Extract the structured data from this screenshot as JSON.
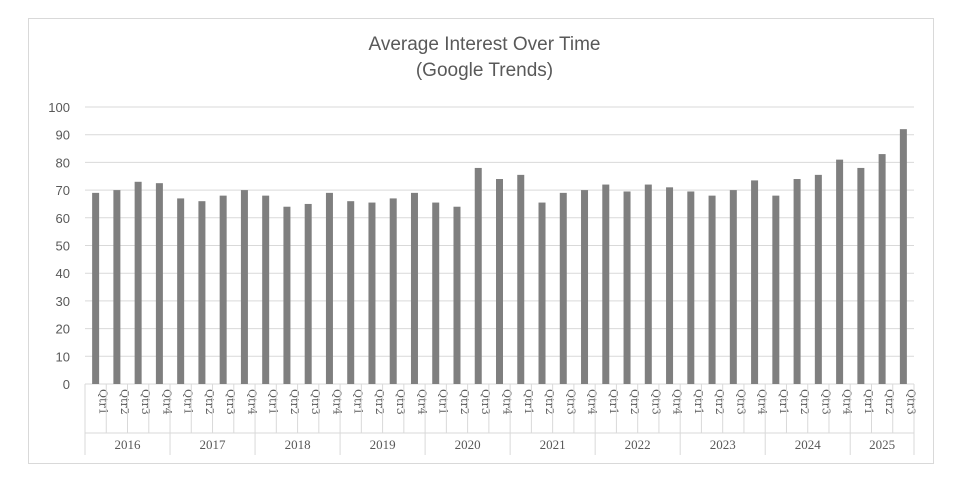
{
  "chart_data": {
    "type": "bar",
    "title": "Average Interest Over Time",
    "subtitle": "(Google Trends)",
    "xlabel": "",
    "ylabel": "",
    "ylim": [
      0,
      100
    ],
    "yticks": [
      0,
      10,
      20,
      30,
      40,
      50,
      60,
      70,
      80,
      90,
      100
    ],
    "grid": true,
    "legend": "none",
    "bar_color": "#7f7f7f",
    "years": [
      {
        "label": "2016",
        "quarters": [
          "Qtr1",
          "Qtr2",
          "Qtr3",
          "Qtr4"
        ]
      },
      {
        "label": "2017",
        "quarters": [
          "Qtr1",
          "Qtr2",
          "Qtr3",
          "Qtr4"
        ]
      },
      {
        "label": "2018",
        "quarters": [
          "Qtr1",
          "Qtr2",
          "Qtr3",
          "Qtr4"
        ]
      },
      {
        "label": "2019",
        "quarters": [
          "Qtr1",
          "Qtr2",
          "Qtr3",
          "Qtr4"
        ]
      },
      {
        "label": "2020",
        "quarters": [
          "Qtr1",
          "Qtr2",
          "Qtr3",
          "Qtr4"
        ]
      },
      {
        "label": "2021",
        "quarters": [
          "Qtr1",
          "Qtr2",
          "Qtr3",
          "Qtr4"
        ]
      },
      {
        "label": "2022",
        "quarters": [
          "Qtr1",
          "Qtr2",
          "Qtr3",
          "Qtr4"
        ]
      },
      {
        "label": "2023",
        "quarters": [
          "Qtr1",
          "Qtr2",
          "Qtr3",
          "Qtr4"
        ]
      },
      {
        "label": "2024",
        "quarters": [
          "Qtr1",
          "Qtr2",
          "Qtr3",
          "Qtr4"
        ]
      },
      {
        "label": "2025",
        "quarters": [
          "Qtr1",
          "Qtr2",
          "Qtr3"
        ]
      }
    ],
    "values": [
      69,
      70,
      73,
      72.5,
      67,
      66,
      68,
      70,
      68,
      64,
      65,
      69,
      66,
      65.5,
      67,
      69,
      65.5,
      64,
      78,
      74,
      75.5,
      65.5,
      69,
      70,
      72,
      69.5,
      72,
      71,
      69.5,
      68,
      70,
      73.5,
      68,
      74,
      75.5,
      81,
      78,
      83,
      92
    ]
  }
}
